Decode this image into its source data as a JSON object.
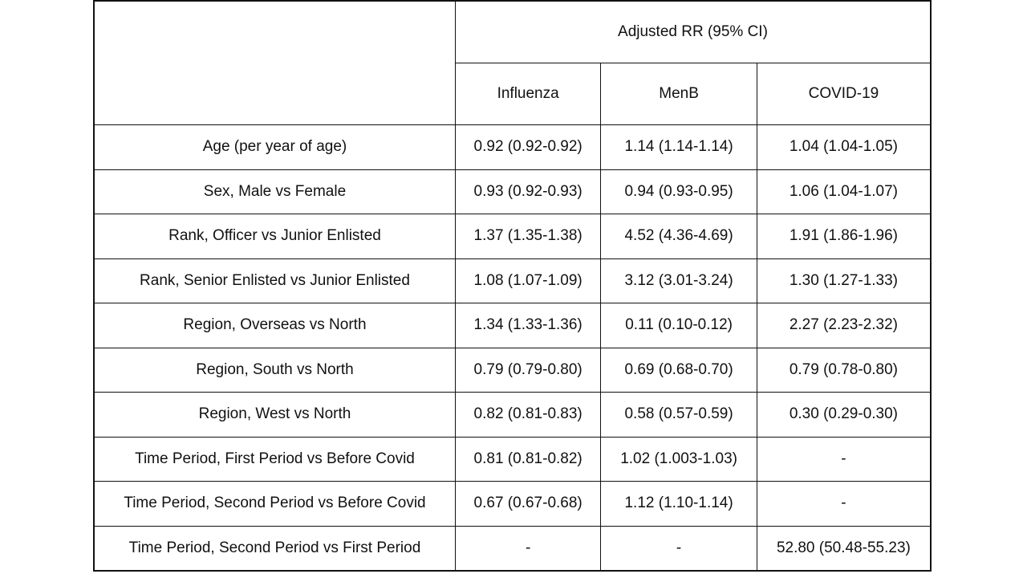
{
  "header": {
    "group_label": "Adjusted RR (95% CI)",
    "columns": [
      "Influenza",
      "MenB",
      "COVID-19"
    ]
  },
  "rows": [
    {
      "label": "Age (per year of age)",
      "values": [
        "0.92 (0.92-0.92)",
        "1.14 (1.14-1.14)",
        "1.04 (1.04-1.05)"
      ]
    },
    {
      "label": "Sex, Male vs Female",
      "values": [
        "0.93 (0.92-0.93)",
        "0.94 (0.93-0.95)",
        "1.06 (1.04-1.07)"
      ]
    },
    {
      "label": "Rank, Officer vs Junior Enlisted",
      "values": [
        "1.37 (1.35-1.38)",
        "4.52 (4.36-4.69)",
        "1.91 (1.86-1.96)"
      ]
    },
    {
      "label": "Rank, Senior Enlisted vs Junior Enlisted",
      "values": [
        "1.08 (1.07-1.09)",
        "3.12 (3.01-3.24)",
        "1.30 (1.27-1.33)"
      ]
    },
    {
      "label": "Region, Overseas vs North",
      "values": [
        "1.34 (1.33-1.36)",
        "0.11 (0.10-0.12)",
        "2.27 (2.23-2.32)"
      ]
    },
    {
      "label": "Region, South vs North",
      "values": [
        "0.79 (0.79-0.80)",
        "0.69 (0.68-0.70)",
        "0.79 (0.78-0.80)"
      ]
    },
    {
      "label": "Region, West vs North",
      "values": [
        "0.82 (0.81-0.83)",
        "0.58 (0.57-0.59)",
        "0.30 (0.29-0.30)"
      ]
    },
    {
      "label": "Time Period, First Period vs Before Covid",
      "values": [
        "0.81 (0.81-0.82)",
        "1.02 (1.003-1.03)",
        "-"
      ]
    },
    {
      "label": "Time Period, Second Period vs Before Covid",
      "values": [
        "0.67 (0.67-0.68)",
        "1.12 (1.10-1.14)",
        "-"
      ]
    },
    {
      "label": "Time Period, Second Period vs First Period",
      "values": [
        "-",
        "-",
        "52.80 (50.48-55.23)"
      ]
    }
  ]
}
